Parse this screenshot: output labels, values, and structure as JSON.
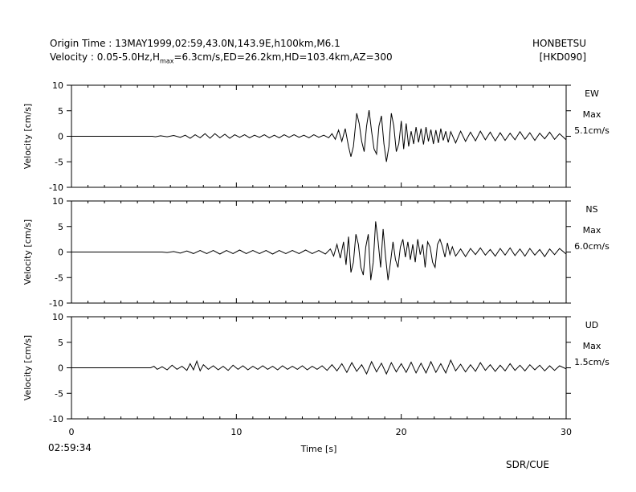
{
  "header": {
    "title": "Origin Time : 13MAY1999,02:59,43.0N,143.9E,h100km,M6.1",
    "subtitle_prefix": "Velocity : 0.05-5.0Hz,H",
    "subtitle_sub": "max",
    "subtitle_suffix": "=6.3cm/s,ED=26.2km,HD=103.4km,AZ=300",
    "station": "HONBETSU",
    "station_code": "[HKD090]"
  },
  "time_origin_label": "02:59:34",
  "credit": "SDR/CUE",
  "chart_data": {
    "type": "line",
    "xlabel": "Time [s]",
    "xlim": [
      0,
      30
    ],
    "xticks": [
      0,
      10,
      20,
      30
    ],
    "ylabel": "Velocity [cm/s]",
    "ylim": [
      -10,
      10
    ],
    "yticks": [
      10,
      5,
      0,
      -5,
      -10
    ],
    "series": [
      {
        "name": "EW",
        "max_label": "Max",
        "max_value": "5.1cm/s",
        "points": [
          [
            0,
            0
          ],
          [
            4.9,
            0
          ],
          [
            5.1,
            -0.1
          ],
          [
            5.4,
            0.1
          ],
          [
            5.8,
            -0.1
          ],
          [
            6.2,
            0.15
          ],
          [
            6.6,
            -0.2
          ],
          [
            6.9,
            0.2
          ],
          [
            7.2,
            -0.4
          ],
          [
            7.5,
            0.3
          ],
          [
            7.8,
            -0.3
          ],
          [
            8.1,
            0.5
          ],
          [
            8.4,
            -0.4
          ],
          [
            8.7,
            0.5
          ],
          [
            9,
            -0.3
          ],
          [
            9.3,
            0.4
          ],
          [
            9.6,
            -0.4
          ],
          [
            9.9,
            0.3
          ],
          [
            10.2,
            -0.2
          ],
          [
            10.5,
            0.3
          ],
          [
            10.8,
            -0.3
          ],
          [
            11.1,
            0.2
          ],
          [
            11.4,
            -0.2
          ],
          [
            11.7,
            0.3
          ],
          [
            12,
            -0.3
          ],
          [
            12.3,
            0.2
          ],
          [
            12.6,
            -0.3
          ],
          [
            12.9,
            0.3
          ],
          [
            13.2,
            -0.2
          ],
          [
            13.5,
            0.3
          ],
          [
            13.8,
            -0.2
          ],
          [
            14.1,
            0.2
          ],
          [
            14.4,
            -0.3
          ],
          [
            14.7,
            0.3
          ],
          [
            15,
            -0.2
          ],
          [
            15.3,
            0.2
          ],
          [
            15.6,
            -0.3
          ],
          [
            15.8,
            0.5
          ],
          [
            16,
            -0.6
          ],
          [
            16.2,
            1.2
          ],
          [
            16.4,
            -1
          ],
          [
            16.6,
            1.5
          ],
          [
            16.8,
            -2
          ],
          [
            16.95,
            -4
          ],
          [
            17.1,
            -2
          ],
          [
            17.3,
            4.5
          ],
          [
            17.45,
            2.5
          ],
          [
            17.6,
            -1
          ],
          [
            17.75,
            -3
          ],
          [
            17.9,
            2
          ],
          [
            18.05,
            5.1
          ],
          [
            18.2,
            1
          ],
          [
            18.35,
            -2.5
          ],
          [
            18.5,
            -3.5
          ],
          [
            18.65,
            2
          ],
          [
            18.8,
            4
          ],
          [
            18.95,
            -1.5
          ],
          [
            19.1,
            -5
          ],
          [
            19.25,
            -2
          ],
          [
            19.4,
            4.5
          ],
          [
            19.55,
            2
          ],
          [
            19.7,
            -3
          ],
          [
            19.85,
            -1.5
          ],
          [
            20,
            3
          ],
          [
            20.15,
            -2.5
          ],
          [
            20.3,
            2.5
          ],
          [
            20.45,
            -2
          ],
          [
            20.6,
            1
          ],
          [
            20.75,
            -1.5
          ],
          [
            20.9,
            1.8
          ],
          [
            21.05,
            -1.2
          ],
          [
            21.2,
            1.5
          ],
          [
            21.35,
            -1.6
          ],
          [
            21.5,
            1.8
          ],
          [
            21.65,
            -1
          ],
          [
            21.8,
            1.3
          ],
          [
            21.95,
            -1.5
          ],
          [
            22.1,
            1.2
          ],
          [
            22.25,
            -1.3
          ],
          [
            22.4,
            1.5
          ],
          [
            22.55,
            -0.8
          ],
          [
            22.7,
            1
          ],
          [
            22.85,
            -1.2
          ],
          [
            23,
            0.9
          ],
          [
            23.3,
            -1.3
          ],
          [
            23.6,
            1
          ],
          [
            23.9,
            -1
          ],
          [
            24.2,
            0.8
          ],
          [
            24.5,
            -0.9
          ],
          [
            24.8,
            1
          ],
          [
            25.1,
            -0.7
          ],
          [
            25.4,
            0.8
          ],
          [
            25.7,
            -0.9
          ],
          [
            26,
            0.7
          ],
          [
            26.3,
            -0.8
          ],
          [
            26.6,
            0.6
          ],
          [
            26.9,
            -0.7
          ],
          [
            27.2,
            0.9
          ],
          [
            27.5,
            -0.6
          ],
          [
            27.8,
            0.7
          ],
          [
            28.1,
            -0.8
          ],
          [
            28.4,
            0.6
          ],
          [
            28.7,
            -0.5
          ],
          [
            29,
            0.8
          ],
          [
            29.3,
            -0.6
          ],
          [
            29.6,
            0.5
          ],
          [
            30,
            -0.7
          ]
        ]
      },
      {
        "name": "NS",
        "max_label": "Max",
        "max_value": "6.0cm/s",
        "points": [
          [
            0,
            0
          ],
          [
            5.5,
            0
          ],
          [
            5.8,
            -0.1
          ],
          [
            6.2,
            0.1
          ],
          [
            6.6,
            -0.2
          ],
          [
            7,
            0.2
          ],
          [
            7.4,
            -0.3
          ],
          [
            7.8,
            0.3
          ],
          [
            8.2,
            -0.3
          ],
          [
            8.6,
            0.3
          ],
          [
            9,
            -0.4
          ],
          [
            9.4,
            0.3
          ],
          [
            9.8,
            -0.3
          ],
          [
            10.2,
            0.4
          ],
          [
            10.6,
            -0.3
          ],
          [
            11,
            0.3
          ],
          [
            11.4,
            -0.3
          ],
          [
            11.8,
            0.3
          ],
          [
            12.2,
            -0.4
          ],
          [
            12.6,
            0.3
          ],
          [
            13,
            -0.3
          ],
          [
            13.4,
            0.3
          ],
          [
            13.8,
            -0.3
          ],
          [
            14.2,
            0.4
          ],
          [
            14.6,
            -0.3
          ],
          [
            15,
            0.3
          ],
          [
            15.4,
            -0.4
          ],
          [
            15.7,
            0.6
          ],
          [
            15.9,
            -0.8
          ],
          [
            16.1,
            1.5
          ],
          [
            16.3,
            -1.2
          ],
          [
            16.5,
            2
          ],
          [
            16.65,
            -2.5
          ],
          [
            16.8,
            3
          ],
          [
            16.95,
            -4
          ],
          [
            17.1,
            -2
          ],
          [
            17.25,
            3.5
          ],
          [
            17.4,
            1.5
          ],
          [
            17.55,
            -3
          ],
          [
            17.7,
            -4.5
          ],
          [
            17.85,
            1
          ],
          [
            18,
            3.5
          ],
          [
            18.15,
            -5.5
          ],
          [
            18.3,
            -2
          ],
          [
            18.45,
            6
          ],
          [
            18.6,
            2
          ],
          [
            18.75,
            -3
          ],
          [
            18.9,
            4.5
          ],
          [
            19.05,
            -1
          ],
          [
            19.2,
            -5.5
          ],
          [
            19.35,
            -2
          ],
          [
            19.5,
            2
          ],
          [
            19.65,
            -1.5
          ],
          [
            19.8,
            -3
          ],
          [
            19.95,
            1
          ],
          [
            20.1,
            2.5
          ],
          [
            20.25,
            -1
          ],
          [
            20.4,
            2
          ],
          [
            20.55,
            -1.5
          ],
          [
            20.7,
            1.5
          ],
          [
            20.85,
            -2
          ],
          [
            21,
            2.5
          ],
          [
            21.15,
            -0.5
          ],
          [
            21.3,
            1.5
          ],
          [
            21.45,
            -3
          ],
          [
            21.6,
            2
          ],
          [
            21.75,
            1
          ],
          [
            21.9,
            -2
          ],
          [
            22.05,
            -3
          ],
          [
            22.2,
            1.5
          ],
          [
            22.35,
            2.5
          ],
          [
            22.5,
            1
          ],
          [
            22.65,
            -1
          ],
          [
            22.8,
            1.8
          ],
          [
            22.95,
            -0.5
          ],
          [
            23.1,
            1
          ],
          [
            23.3,
            -0.8
          ],
          [
            23.6,
            0.6
          ],
          [
            23.9,
            -0.9
          ],
          [
            24.2,
            0.7
          ],
          [
            24.5,
            -0.5
          ],
          [
            24.8,
            0.8
          ],
          [
            25.1,
            -0.6
          ],
          [
            25.4,
            0.5
          ],
          [
            25.7,
            -0.8
          ],
          [
            26,
            0.7
          ],
          [
            26.3,
            -0.6
          ],
          [
            26.6,
            0.8
          ],
          [
            26.9,
            -0.7
          ],
          [
            27.2,
            0.6
          ],
          [
            27.5,
            -0.8
          ],
          [
            27.8,
            0.7
          ],
          [
            28.1,
            -0.6
          ],
          [
            28.4,
            0.5
          ],
          [
            28.7,
            -0.9
          ],
          [
            29,
            0.6
          ],
          [
            29.3,
            -0.5
          ],
          [
            29.6,
            0.7
          ],
          [
            30,
            -0.4
          ]
        ]
      },
      {
        "name": "UD",
        "max_label": "Max",
        "max_value": "1.5cm/s",
        "points": [
          [
            0,
            0
          ],
          [
            4.8,
            0
          ],
          [
            5,
            0.3
          ],
          [
            5.2,
            -0.3
          ],
          [
            5.5,
            0.2
          ],
          [
            5.8,
            -0.4
          ],
          [
            6.1,
            0.5
          ],
          [
            6.4,
            -0.3
          ],
          [
            6.7,
            0.3
          ],
          [
            7,
            -0.5
          ],
          [
            7.2,
            0.8
          ],
          [
            7.4,
            -0.4
          ],
          [
            7.6,
            1.3
          ],
          [
            7.8,
            -0.6
          ],
          [
            8,
            0.6
          ],
          [
            8.3,
            -0.3
          ],
          [
            8.6,
            0.4
          ],
          [
            8.9,
            -0.4
          ],
          [
            9.2,
            0.3
          ],
          [
            9.5,
            -0.5
          ],
          [
            9.8,
            0.5
          ],
          [
            10.1,
            -0.3
          ],
          [
            10.4,
            0.4
          ],
          [
            10.7,
            -0.4
          ],
          [
            11,
            0.3
          ],
          [
            11.3,
            -0.3
          ],
          [
            11.6,
            0.4
          ],
          [
            11.9,
            -0.3
          ],
          [
            12.2,
            0.3
          ],
          [
            12.5,
            -0.4
          ],
          [
            12.8,
            0.4
          ],
          [
            13.1,
            -0.3
          ],
          [
            13.4,
            0.3
          ],
          [
            13.7,
            -0.3
          ],
          [
            14,
            0.4
          ],
          [
            14.3,
            -0.4
          ],
          [
            14.6,
            0.3
          ],
          [
            14.9,
            -0.3
          ],
          [
            15.2,
            0.4
          ],
          [
            15.5,
            -0.5
          ],
          [
            15.8,
            0.6
          ],
          [
            16.1,
            -0.6
          ],
          [
            16.4,
            0.8
          ],
          [
            16.7,
            -0.9
          ],
          [
            17,
            1
          ],
          [
            17.3,
            -0.7
          ],
          [
            17.6,
            0.6
          ],
          [
            17.9,
            -1.2
          ],
          [
            18.2,
            1.2
          ],
          [
            18.5,
            -0.8
          ],
          [
            18.8,
            0.9
          ],
          [
            19.1,
            -1.2
          ],
          [
            19.4,
            1
          ],
          [
            19.7,
            -0.8
          ],
          [
            20,
            0.8
          ],
          [
            20.3,
            -0.9
          ],
          [
            20.6,
            1.1
          ],
          [
            20.9,
            -1
          ],
          [
            21.2,
            0.9
          ],
          [
            21.5,
            -1
          ],
          [
            21.8,
            1.2
          ],
          [
            22.1,
            -0.9
          ],
          [
            22.4,
            0.8
          ],
          [
            22.7,
            -1
          ],
          [
            23,
            1.5
          ],
          [
            23.3,
            -0.6
          ],
          [
            23.6,
            0.7
          ],
          [
            23.9,
            -0.8
          ],
          [
            24.2,
            0.6
          ],
          [
            24.5,
            -0.7
          ],
          [
            24.8,
            1
          ],
          [
            25.1,
            -0.5
          ],
          [
            25.4,
            0.6
          ],
          [
            25.7,
            -0.7
          ],
          [
            26,
            0.5
          ],
          [
            26.3,
            -0.6
          ],
          [
            26.6,
            0.8
          ],
          [
            26.9,
            -0.5
          ],
          [
            27.2,
            0.5
          ],
          [
            27.5,
            -0.6
          ],
          [
            27.8,
            0.6
          ],
          [
            28.1,
            -0.4
          ],
          [
            28.4,
            0.5
          ],
          [
            28.7,
            -0.6
          ],
          [
            29,
            0.4
          ],
          [
            29.3,
            -0.5
          ],
          [
            29.6,
            0.4
          ],
          [
            30,
            -0.2
          ]
        ]
      }
    ]
  }
}
